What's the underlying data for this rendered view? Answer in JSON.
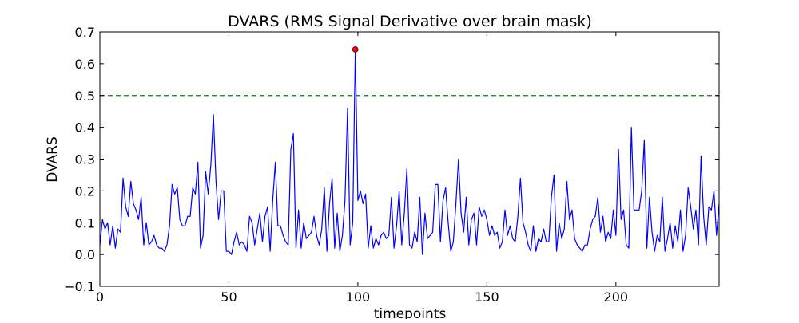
{
  "chart_data": {
    "type": "line",
    "title": "DVARS (RMS Signal Derivative over brain mask)",
    "xlabel": "timepoints",
    "ylabel": "DVARS",
    "xlim": [
      0,
      240
    ],
    "ylim": [
      -0.1,
      0.7
    ],
    "xticks": [
      0,
      50,
      100,
      150,
      200
    ],
    "xtick_labels": [
      "0",
      "50",
      "100",
      "150",
      "200"
    ],
    "yticks": [
      -0.1,
      0.0,
      0.1,
      0.2,
      0.3,
      0.4,
      0.5,
      0.6,
      0.7
    ],
    "ytick_labels": [
      "−0.1",
      "0.0",
      "0.1",
      "0.2",
      "0.3",
      "0.4",
      "0.5",
      "0.6",
      "0.7"
    ],
    "grid": false,
    "series": [
      {
        "color": "#0000ff",
        "x_start": 0,
        "x_step": 1,
        "values": [
          0.03,
          0.11,
          0.08,
          0.1,
          0.03,
          0.09,
          0.02,
          0.08,
          0.07,
          0.24,
          0.15,
          0.12,
          0.23,
          0.16,
          0.14,
          0.11,
          0.18,
          0.03,
          0.1,
          0.03,
          0.04,
          0.06,
          0.03,
          0.02,
          0.02,
          0.01,
          0.03,
          0.09,
          0.22,
          0.19,
          0.21,
          0.11,
          0.09,
          0.09,
          0.12,
          0.12,
          0.21,
          0.19,
          0.29,
          0.02,
          0.06,
          0.26,
          0.19,
          0.28,
          0.44,
          0.23,
          0.11,
          0.2,
          0.2,
          0.01,
          0.01,
          0.0,
          0.04,
          0.07,
          0.03,
          0.04,
          0.03,
          0.01,
          0.12,
          0.1,
          0.03,
          0.08,
          0.13,
          0.04,
          0.12,
          0.15,
          0.01,
          0.17,
          0.29,
          0.09,
          0.09,
          0.06,
          0.04,
          0.03,
          0.33,
          0.38,
          0.02,
          0.14,
          0.02,
          0.1,
          0.05,
          0.06,
          0.07,
          0.12,
          0.06,
          0.03,
          0.08,
          0.21,
          0.01,
          0.16,
          0.24,
          0.02,
          0.13,
          0.01,
          0.06,
          0.17,
          0.46,
          0.03,
          0.1,
          0.645,
          0.17,
          0.2,
          0.16,
          0.19,
          0.02,
          0.09,
          0.02,
          0.05,
          0.03,
          0.06,
          0.07,
          0.05,
          0.06,
          0.18,
          0.02,
          0.09,
          0.2,
          0.03,
          0.13,
          0.27,
          0.03,
          0.02,
          0.07,
          0.04,
          0.18,
          0.0,
          0.13,
          0.05,
          0.06,
          0.07,
          0.22,
          0.22,
          0.04,
          0.17,
          0.21,
          0.1,
          0.01,
          0.04,
          0.16,
          0.3,
          0.13,
          0.07,
          0.18,
          0.03,
          0.11,
          0.13,
          0.03,
          0.15,
          0.12,
          0.14,
          0.11,
          0.06,
          0.09,
          0.06,
          0.07,
          0.02,
          0.04,
          0.14,
          0.06,
          0.09,
          0.05,
          0.04,
          0.12,
          0.24,
          0.1,
          0.07,
          0.03,
          0.01,
          0.09,
          0.01,
          0.05,
          0.04,
          0.08,
          0.04,
          0.04,
          0.18,
          0.25,
          0.01,
          0.1,
          0.05,
          0.08,
          0.23,
          0.11,
          0.14,
          0.05,
          0.03,
          0.02,
          0.01,
          0.03,
          0.03,
          0.08,
          0.11,
          0.12,
          0.18,
          0.07,
          0.12,
          0.04,
          0.07,
          0.05,
          0.14,
          0.06,
          0.33,
          0.11,
          0.14,
          0.03,
          0.02,
          0.4,
          0.14,
          0.14,
          0.14,
          0.2,
          0.36,
          0.02,
          0.18,
          0.07,
          0.01,
          0.06,
          0.04,
          0.18,
          0.01,
          0.05,
          0.1,
          0.02,
          0.09,
          0.04,
          0.14,
          0.01,
          0.06,
          0.21,
          0.15,
          0.08,
          0.14,
          0.03,
          0.31,
          0.12,
          0.03,
          0.15,
          0.14,
          0.2,
          0.06,
          0.16
        ]
      }
    ],
    "threshold_line": {
      "y": 0.5,
      "color": "#008000",
      "style": "dashed"
    },
    "highlight_point": {
      "x": 99,
      "y": 0.645,
      "color": "#ff0000"
    }
  }
}
